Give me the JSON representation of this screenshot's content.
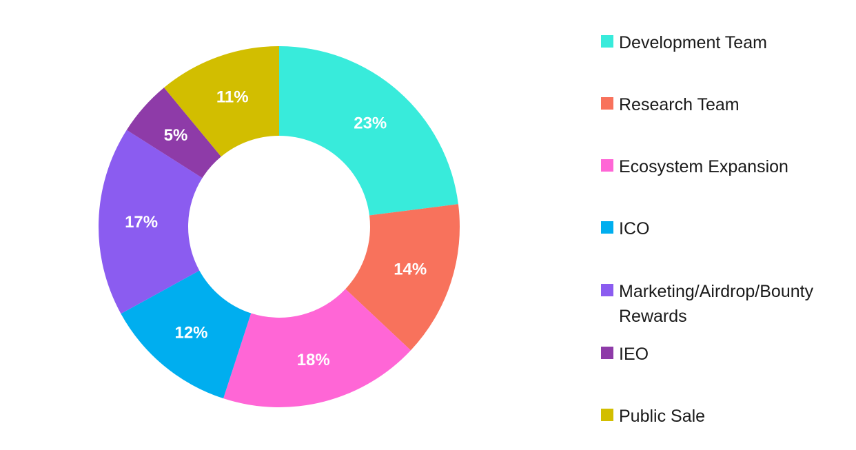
{
  "chart_data": {
    "type": "pie",
    "title": "",
    "legend_position": "right",
    "series": [
      {
        "name": "",
        "values": [
          23,
          14,
          18,
          12,
          17,
          5,
          11
        ]
      }
    ],
    "categories": [
      "Development Team",
      "Research Team",
      "Ecosystem Expansion",
      "ICO",
      "Marketing/Airdrop/Bounty Rewards",
      "IEO",
      "Public Sale"
    ],
    "labels": [
      "23%",
      "14%",
      "18%",
      "12%",
      "17%",
      "5%",
      "11%"
    ],
    "colors": [
      "#38EBDB",
      "#F8725C",
      "#FF66D6",
      "#00AEEF",
      "#8B5CF0",
      "#8E3BA8",
      "#D2BE00"
    ],
    "donut": true
  }
}
